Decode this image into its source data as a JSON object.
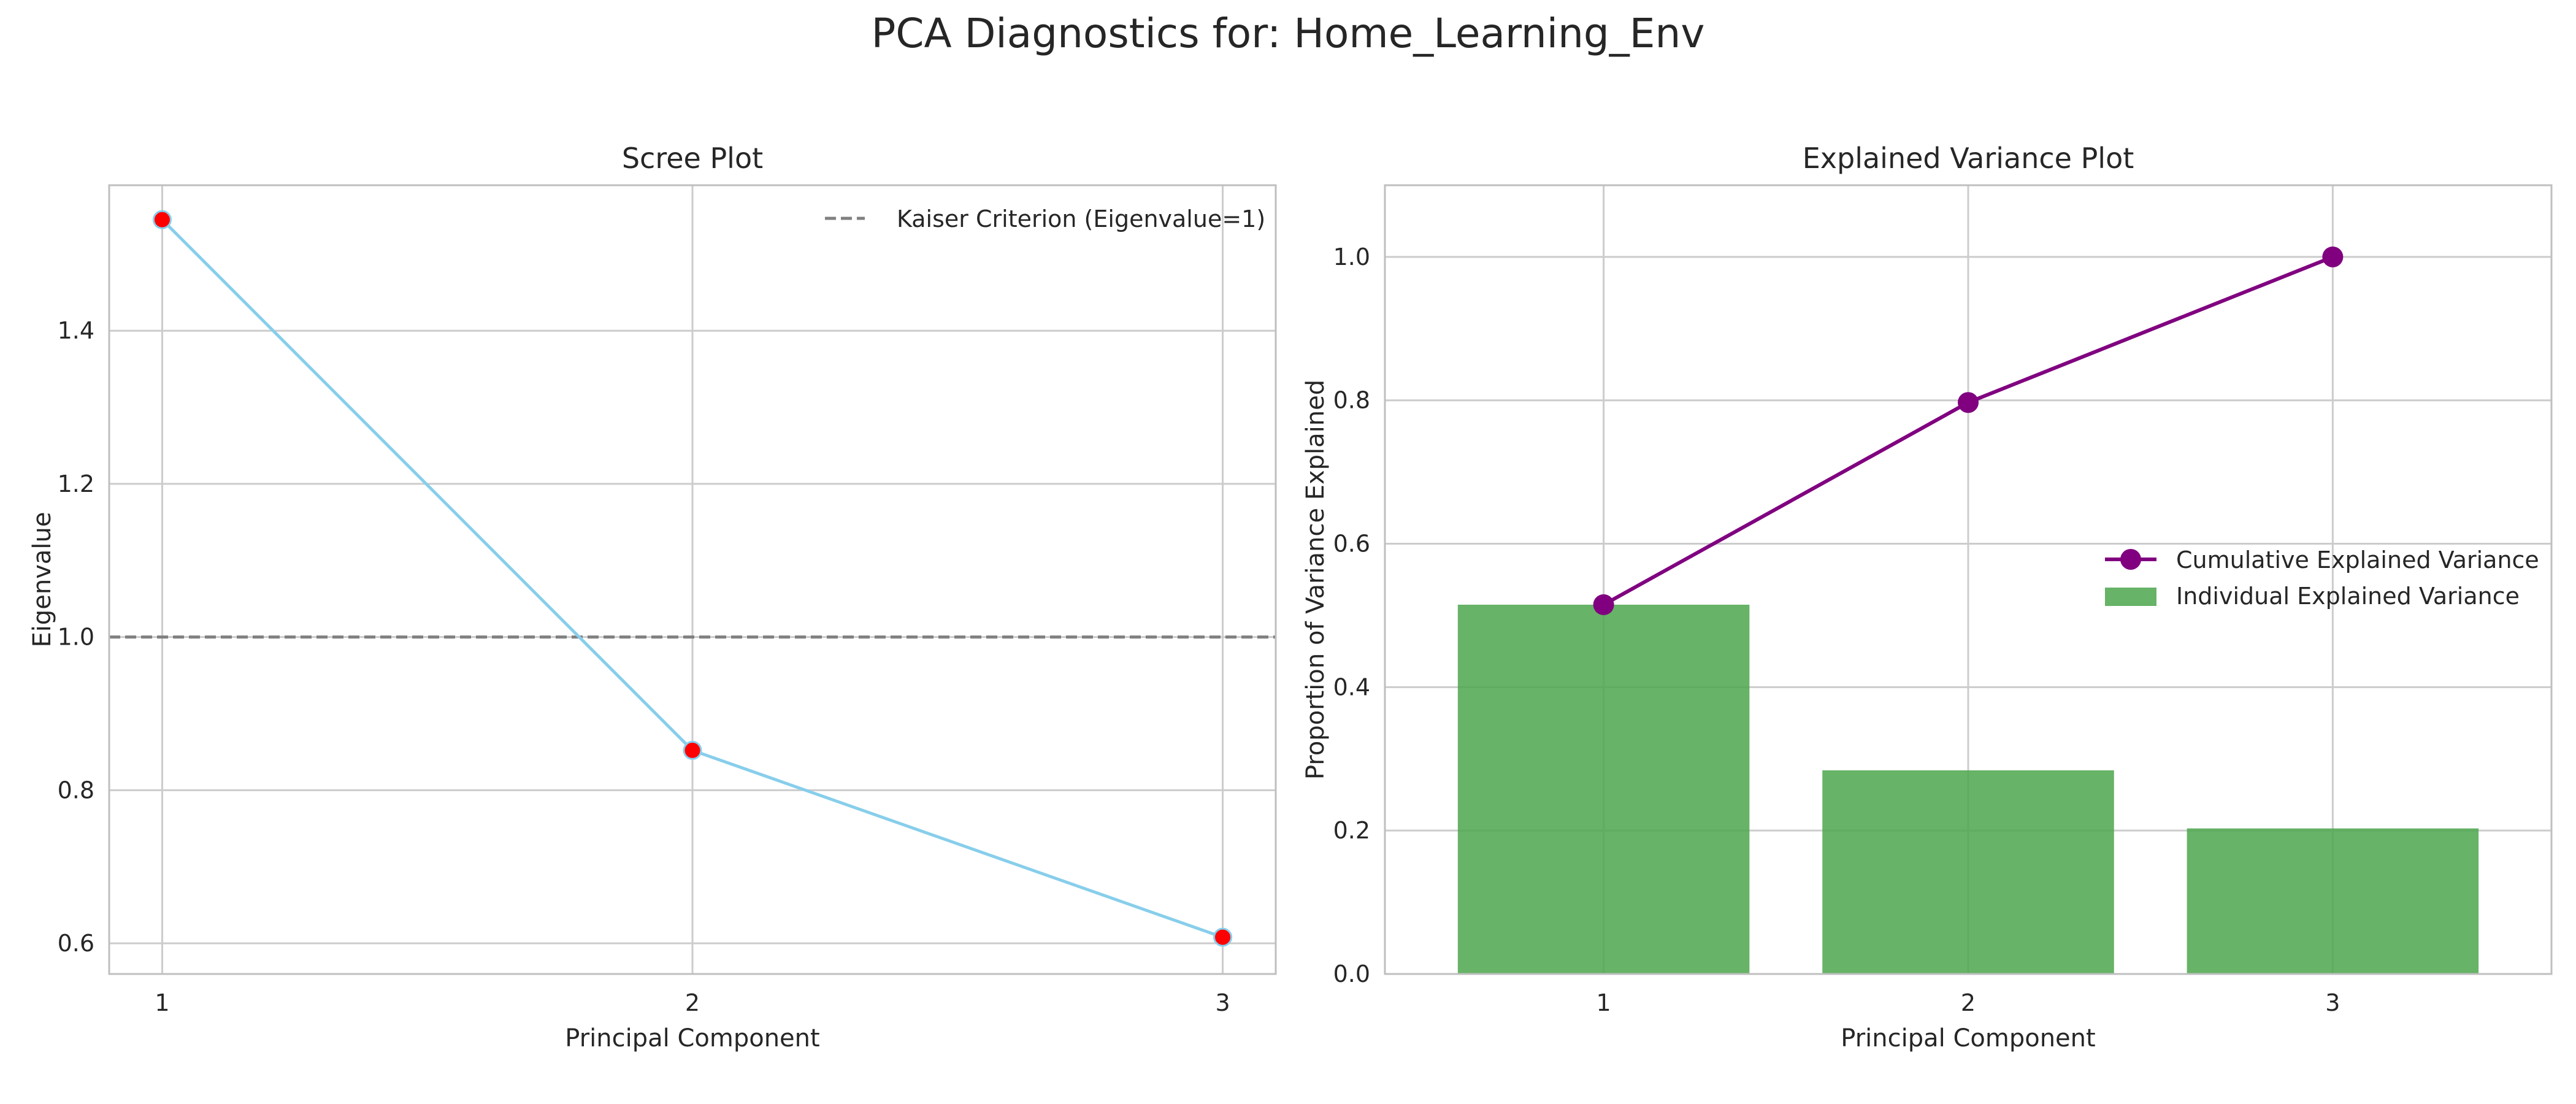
{
  "figure": {
    "title": "PCA Diagnostics for: Home_Learning_Env"
  },
  "colors": {
    "scree_line": "#87ceeb",
    "scree_marker": "#ff0000",
    "kaiser_line": "#808080",
    "cumulative_line": "#800080",
    "individual_bar": "#4ca64c",
    "grid": "#cccccc",
    "spine": "#bfbfbf"
  },
  "chart_data": [
    {
      "type": "line",
      "title": "Scree Plot",
      "xlabel": "Principal Component",
      "ylabel": "Eigenvalue",
      "x": [
        1,
        2,
        3
      ],
      "y": [
        1.545,
        0.852,
        0.608
      ],
      "xlim": [
        0.9,
        3.1
      ],
      "ylim": [
        0.56,
        1.59
      ],
      "xticks": [
        1,
        2,
        3
      ],
      "yticks": [
        0.6,
        0.8,
        1.0,
        1.2,
        1.4
      ],
      "reference_line": {
        "y": 1.0,
        "style": "dashed",
        "label": "Kaiser Criterion (Eigenvalue=1)"
      },
      "legend": {
        "position": "upper right",
        "entries": [
          "Kaiser Criterion (Eigenvalue=1)"
        ]
      },
      "grid": true
    },
    {
      "type": "bar",
      "title": "Explained Variance Plot",
      "xlabel": "Principal Component",
      "ylabel": "Proportion of Variance Explained",
      "categories": [
        1,
        2,
        3
      ],
      "series": [
        {
          "name": "Individual Explained Variance",
          "type": "bar",
          "values": [
            0.515,
            0.284,
            0.203
          ]
        },
        {
          "name": "Cumulative Explained Variance",
          "type": "line",
          "values": [
            0.515,
            0.797,
            1.0
          ]
        }
      ],
      "xlim": [
        0.4,
        3.6
      ],
      "ylim": [
        0.0,
        1.1
      ],
      "yticks": [
        0.0,
        0.2,
        0.4,
        0.6,
        0.8,
        1.0
      ],
      "legend": {
        "position": "center right",
        "entries": [
          "Cumulative Explained Variance",
          "Individual Explained Variance"
        ]
      },
      "grid": true
    }
  ]
}
